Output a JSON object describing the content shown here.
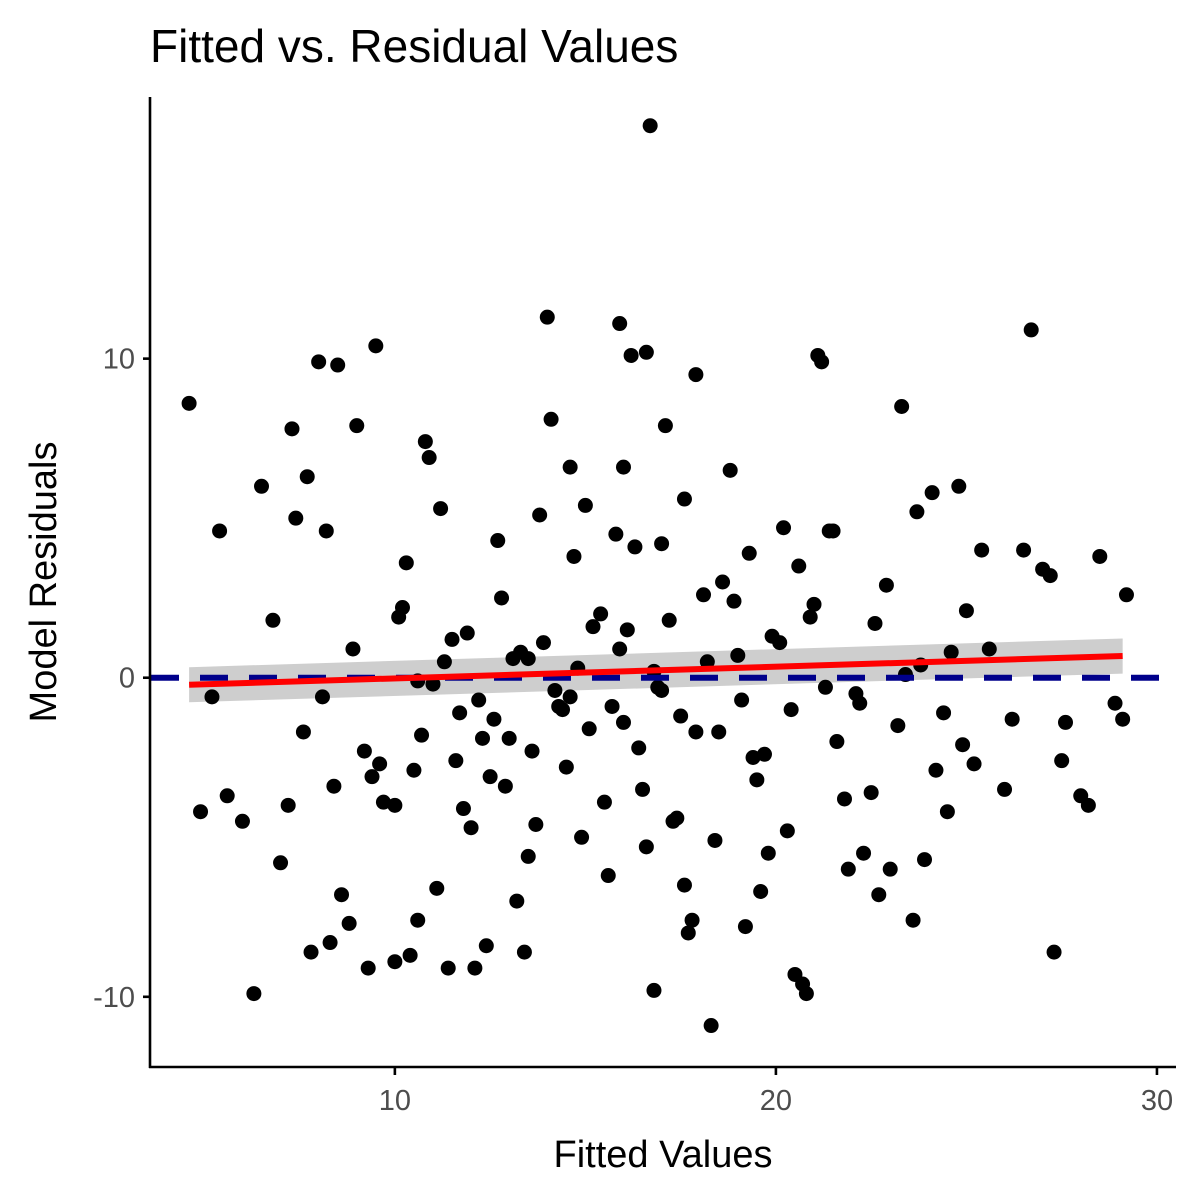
{
  "chart_data": {
    "type": "scatter",
    "title": "Fitted vs. Residual Values",
    "xlabel": "Fitted Values",
    "ylabel": "Model Residuals",
    "xlim": [
      3.6,
      30.5
    ],
    "ylim": [
      -12.2,
      18.2
    ],
    "xticks": [
      10,
      20,
      30
    ],
    "yticks": [
      -10,
      0,
      10
    ],
    "grid": false,
    "legend": "none",
    "colors": {
      "points": "#000000",
      "trend_line": "#ff0000",
      "confidence_band": "#bebebe",
      "reference_line": "#00008b",
      "axis_text": "#4d4d4d"
    },
    "reference_line": {
      "y": 0,
      "style": "dashed"
    },
    "trend": {
      "method": "linear fit",
      "x": [
        4.6,
        29.1
      ],
      "y": [
        -0.22,
        0.68
      ],
      "band": [
        0.55,
        0.55
      ]
    },
    "points": {
      "x": [
        4.6,
        4.9,
        5.2,
        5.4,
        5.6,
        6.0,
        6.3,
        6.5,
        6.8,
        7.0,
        7.2,
        7.3,
        7.4,
        7.6,
        7.7,
        7.8,
        8.0,
        8.2,
        8.3,
        8.5,
        8.6,
        8.8,
        9.0,
        9.3,
        9.5,
        9.6,
        10.0,
        10.0,
        10.1,
        10.4,
        10.5,
        10.6,
        10.8,
        10.9,
        11.1,
        11.2,
        11.4,
        12.1,
        12.4,
        12.6,
        13.2,
        13.4,
        13.5,
        14.0,
        14.1,
        14.4,
        14.6,
        15.0,
        15.6,
        15.9,
        16.0,
        16.2,
        16.5,
        16.6,
        16.7,
        16.8,
        17.0,
        17.1,
        17.3,
        17.6,
        17.7,
        17.8,
        17.9,
        18.3,
        18.8,
        19.2,
        19.6,
        19.8,
        20.2,
        20.5,
        20.7,
        20.8,
        21.1,
        21.2,
        21.5,
        21.9,
        22.3,
        22.7,
        23.0,
        23.3,
        23.6,
        23.9,
        24.1,
        24.5,
        24.8,
        25.2,
        26.0,
        26.5,
        26.7,
        27.0,
        27.3,
        27.5,
        27.6,
        28.0,
        28.2,
        28.5,
        28.9,
        29.1,
        29.2,
        8.1,
        8.4,
        8.9,
        9.2,
        9.7,
        10.2,
        10.7,
        11.3,
        11.6,
        11.9,
        12.2,
        12.5,
        12.8,
        13.0,
        13.3,
        13.6,
        13.9,
        14.2,
        14.5,
        14.8,
        15.1,
        15.4,
        15.7,
        16.1,
        16.4,
        16.9,
        17.2,
        17.5,
        18.1,
        18.5,
        19.0,
        19.4,
        19.9,
        20.4,
        21.0,
        21.6,
        22.1,
        22.6,
        23.2,
        23.8,
        24.4,
        25.0,
        25.6,
        26.2,
        27.2,
        9.4,
        10.3,
        11.0,
        11.8,
        12.7,
        13.7,
        14.7,
        15.5,
        16.3,
        17.4,
        18.6,
        19.5,
        20.6,
        21.8,
        22.9,
        24.2,
        25.4,
        12.0,
        12.9,
        13.8,
        14.9,
        15.8,
        16.6,
        17.6,
        18.4,
        19.3,
        20.3,
        21.4,
        22.5,
        23.7,
        24.9,
        11.5,
        12.3,
        13.1,
        14.3,
        15.2,
        16.0,
        16.8,
        17.9,
        18.9,
        19.7,
        20.9,
        22.2,
        23.4,
        10.6,
        11.7,
        13.5,
        14.6,
        15.9,
        17.0,
        18.2,
        19.1,
        20.1,
        21.3,
        24.6
      ],
      "y": [
        8.6,
        -4.2,
        -0.6,
        4.6,
        -3.7,
        -4.5,
        -9.9,
        6.0,
        1.8,
        -5.8,
        -4.0,
        7.8,
        5.0,
        -1.7,
        6.3,
        -8.6,
        9.9,
        4.6,
        -8.3,
        9.8,
        -6.8,
        -7.7,
        7.9,
        -9.1,
        10.4,
        -2.7,
        -8.9,
        -4.0,
        1.9,
        -8.7,
        -2.9,
        -7.6,
        7.4,
        6.9,
        -6.6,
        5.3,
        -9.1,
        -9.1,
        -8.4,
        -1.3,
        -7.0,
        -8.6,
        -5.6,
        11.3,
        8.1,
        -1.0,
        6.6,
        5.4,
        -6.2,
        11.1,
        6.6,
        10.1,
        -3.5,
        10.2,
        17.3,
        -9.8,
        4.2,
        7.9,
        -4.5,
        -6.5,
        -8.0,
        -7.6,
        9.5,
        -10.9,
        6.5,
        -7.8,
        -6.7,
        -5.5,
        4.7,
        -9.3,
        -9.6,
        -9.9,
        10.1,
        9.9,
        4.6,
        -6.0,
        -5.5,
        -6.8,
        -6.0,
        8.5,
        -7.6,
        -5.7,
        5.8,
        -4.2,
        6.0,
        -2.7,
        -3.5,
        4.0,
        10.9,
        3.4,
        -8.6,
        -2.6,
        -1.4,
        -3.7,
        -4.0,
        3.8,
        -0.8,
        -1.3,
        2.6,
        -0.6,
        -3.4,
        0.9,
        -2.3,
        -3.9,
        2.2,
        -1.8,
        0.5,
        -2.6,
        1.4,
        -0.7,
        -3.1,
        2.5,
        -1.9,
        0.8,
        -2.3,
        1.1,
        -0.4,
        -2.8,
        0.3,
        -1.6,
        2.0,
        -0.9,
        1.5,
        -2.2,
        -0.3,
        1.8,
        -1.2,
        2.6,
        -1.7,
        0.7,
        -2.5,
        1.3,
        -1.0,
        2.3,
        -2.0,
        -0.5,
        1.7,
        -1.5,
        0.4,
        -1.1,
        2.1,
        0.9,
        -1.3,
        3.2,
        -3.1,
        3.6,
        -0.2,
        -4.1,
        4.3,
        -4.6,
        3.8,
        -3.9,
        4.1,
        -4.4,
        3.0,
        -3.2,
        3.5,
        -3.8,
        2.9,
        -2.9,
        4.0,
        -4.7,
        -3.4,
        5.1,
        -5.0,
        4.5,
        -5.3,
        5.6,
        -5.1,
        3.9,
        -4.8,
        4.6,
        -3.6,
        5.2,
        -2.1,
        1.2,
        -1.9,
        0.6,
        -0.9,
        1.6,
        -1.4,
        0.2,
        -1.7,
        2.4,
        -2.4,
        1.9,
        -0.8,
        0.1,
        -0.1,
        -1.1,
        0.6,
        -0.6,
        0.9,
        -0.4,
        0.5,
        -0.7,
        1.1,
        -0.3,
        0.8
      ]
    }
  }
}
